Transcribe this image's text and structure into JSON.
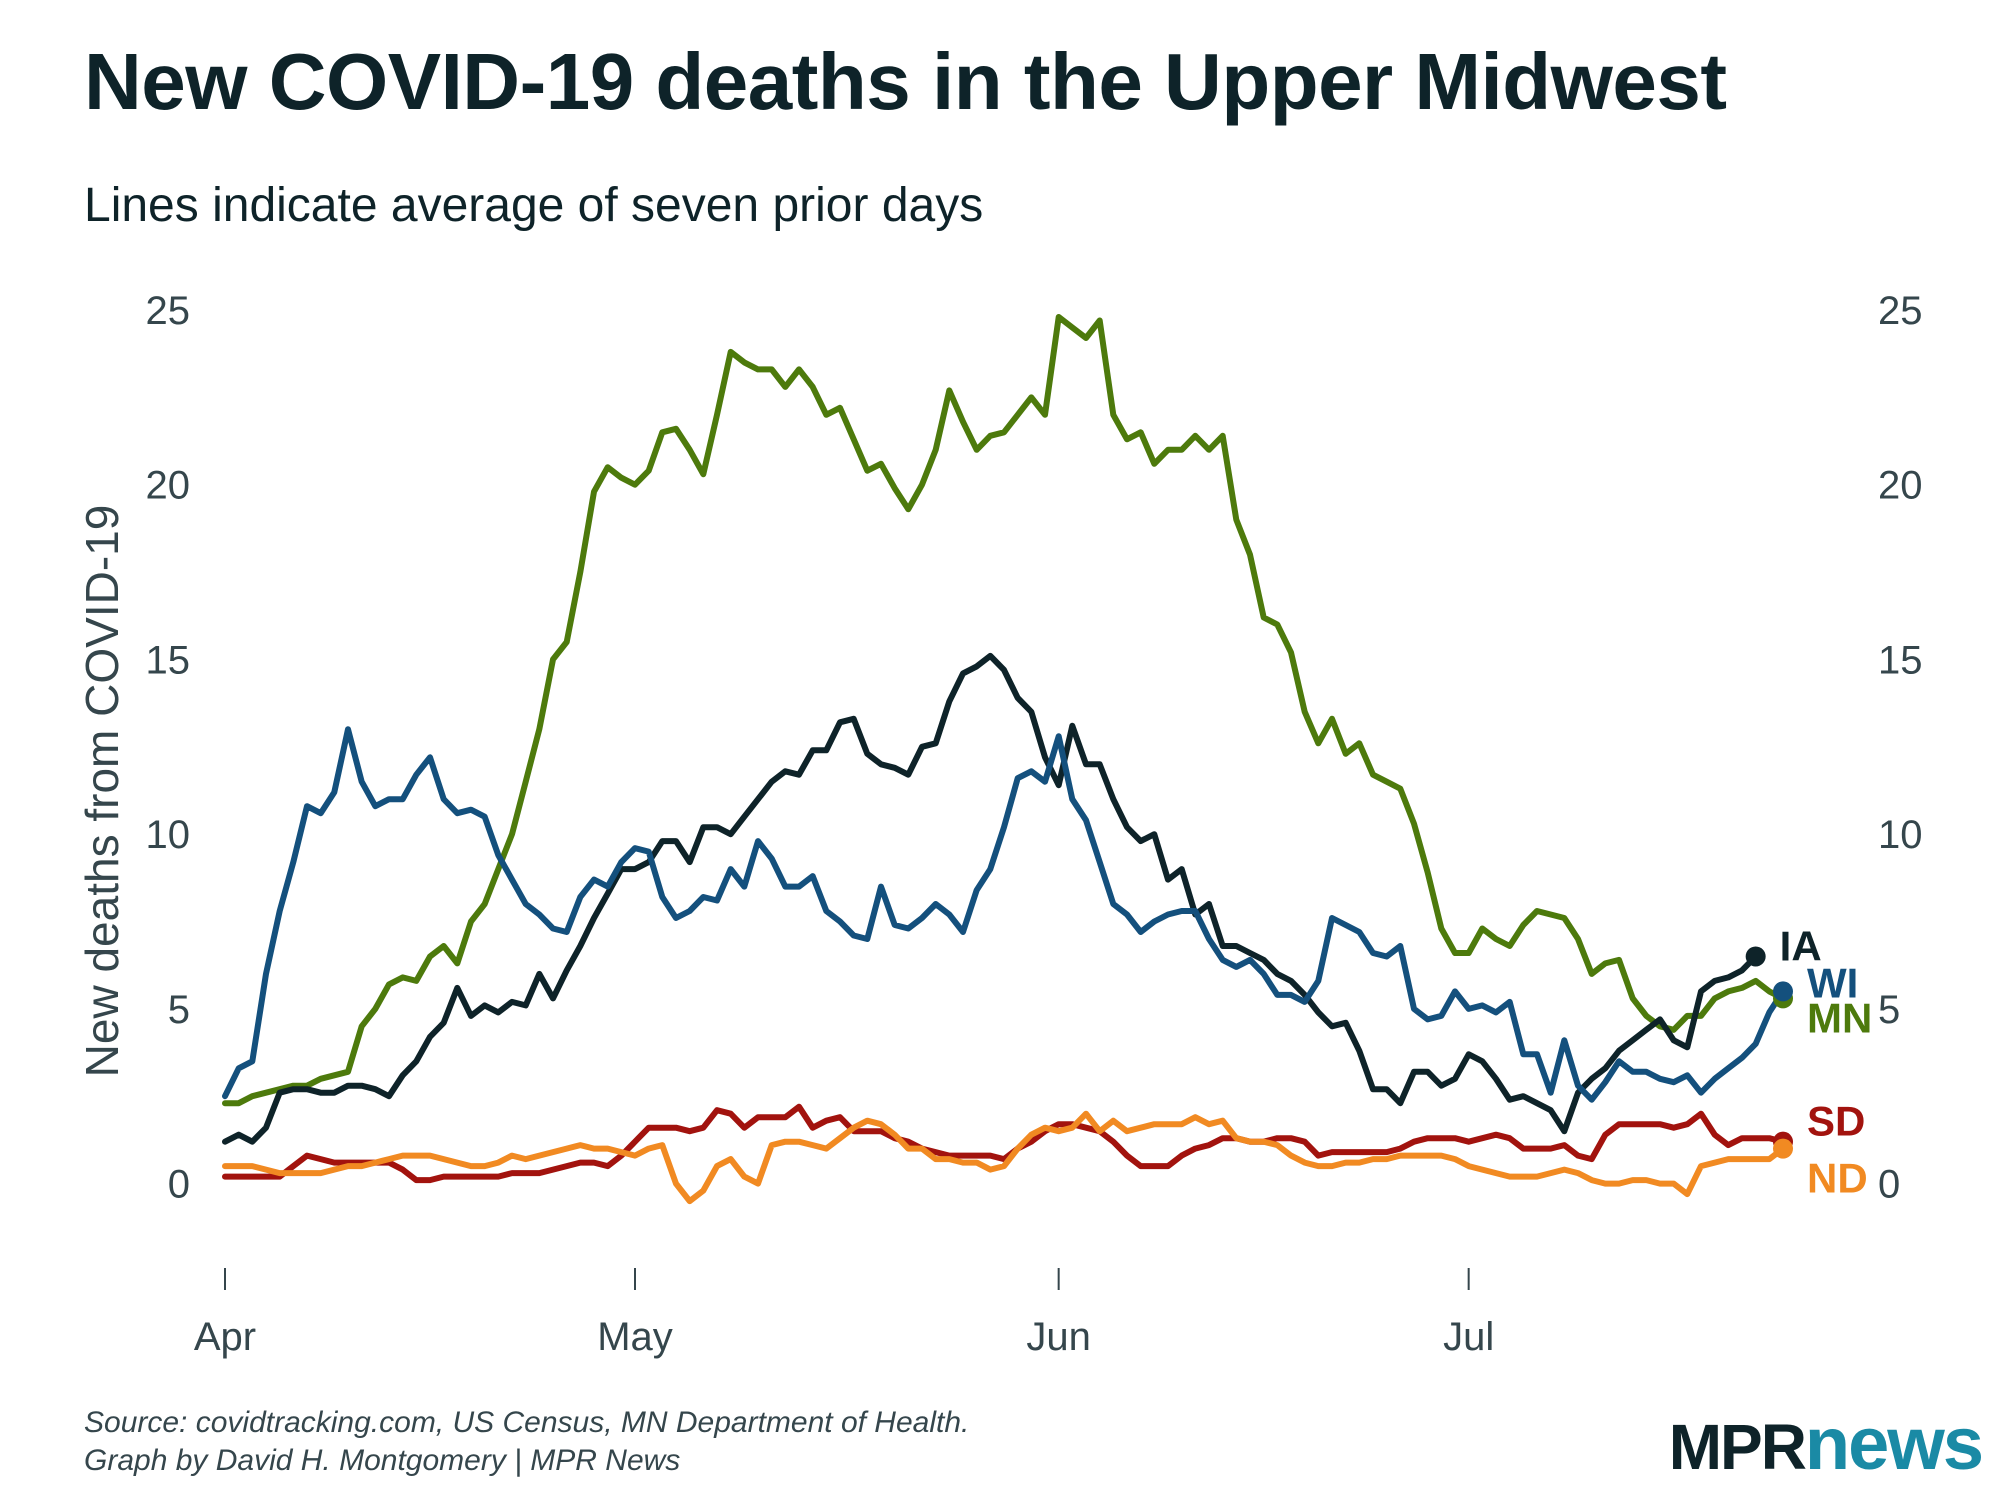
{
  "title": "New COVID-19 deaths in the Upper Midwest",
  "subtitle": "Lines indicate average of seven prior days",
  "footer": {
    "source": "Source: covidtracking.com, US Census, MN Department of Health.",
    "credit": "Graph by David H. Montgomery | MPR News"
  },
  "logo": {
    "mpr": "MPR",
    "news": "news"
  },
  "chart_data": {
    "type": "line",
    "title": "New COVID-19 deaths in the Upper Midwest",
    "subtitle": "Lines indicate average of seven prior days",
    "xlabel": "",
    "ylabel": "New deaths from COVID-19",
    "x_unit": "days since April 1",
    "xlim": [
      0,
      111
    ],
    "ylim": [
      -1.5,
      25
    ],
    "x_ticks": [
      {
        "label": "Apr",
        "day": 0
      },
      {
        "label": "May",
        "day": 30
      },
      {
        "label": "Jun",
        "day": 61
      },
      {
        "label": "Jul",
        "day": 91
      }
    ],
    "y_ticks": [
      0,
      5,
      10,
      15,
      20,
      25
    ],
    "grid": false,
    "legend": "direct labels at line ends (right)",
    "series": [
      {
        "name": "MN",
        "color": "#4d7a0c",
        "values": [
          2.3,
          2.3,
          2.5,
          2.6,
          2.7,
          2.8,
          2.8,
          3.0,
          3.1,
          3.2,
          4.5,
          5.0,
          5.7,
          5.9,
          5.8,
          6.5,
          6.8,
          6.3,
          7.5,
          8.0,
          9.0,
          10.0,
          11.5,
          13.0,
          15.0,
          15.5,
          17.5,
          19.8,
          20.5,
          20.2,
          20.0,
          20.4,
          21.5,
          21.6,
          21.0,
          20.3,
          22.0,
          23.8,
          23.5,
          23.3,
          23.3,
          22.8,
          23.3,
          22.8,
          22.0,
          22.2,
          21.3,
          20.4,
          20.6,
          19.9,
          19.3,
          20.0,
          21.0,
          22.7,
          21.8,
          21.0,
          21.4,
          21.5,
          22.0,
          22.5,
          22.0,
          24.8,
          24.5,
          24.2,
          24.7,
          22.0,
          21.3,
          21.5,
          20.6,
          21.0,
          21.0,
          21.4,
          21.0,
          21.4,
          19.0,
          18.0,
          16.2,
          16.0,
          15.2,
          13.5,
          12.6,
          13.3,
          12.3,
          12.6,
          11.7,
          11.5,
          11.3,
          10.3,
          8.9,
          7.3,
          6.6,
          6.6,
          7.3,
          7.0,
          6.8,
          7.4,
          7.8,
          7.7,
          7.6,
          7.0,
          6.0,
          6.3,
          6.4,
          5.3,
          4.8,
          4.5,
          4.4,
          4.8,
          4.8,
          5.3,
          5.5,
          5.6,
          5.8,
          5.5,
          5.3
        ]
      },
      {
        "name": "IA",
        "color": "#0e2329",
        "values": [
          1.2,
          1.4,
          1.2,
          1.6,
          2.6,
          2.7,
          2.7,
          2.6,
          2.6,
          2.8,
          2.8,
          2.7,
          2.5,
          3.1,
          3.5,
          4.2,
          4.6,
          5.6,
          4.8,
          5.1,
          4.9,
          5.2,
          5.1,
          6.0,
          5.3,
          6.1,
          6.8,
          7.6,
          8.3,
          9.0,
          9.0,
          9.2,
          9.8,
          9.8,
          9.2,
          10.2,
          10.2,
          10.0,
          10.5,
          11.0,
          11.5,
          11.8,
          11.7,
          12.4,
          12.4,
          13.2,
          13.3,
          12.3,
          12.0,
          11.9,
          11.7,
          12.5,
          12.6,
          13.8,
          14.6,
          14.8,
          15.1,
          14.7,
          13.9,
          13.5,
          12.2,
          11.4,
          13.1,
          12.0,
          12.0,
          11.0,
          10.2,
          9.8,
          10.0,
          8.7,
          9.0,
          7.7,
          8.0,
          6.8,
          6.8,
          6.6,
          6.4,
          6.0,
          5.8,
          5.4,
          4.9,
          4.5,
          4.6,
          3.8,
          2.7,
          2.7,
          2.3,
          3.2,
          3.2,
          2.8,
          3.0,
          3.7,
          3.5,
          3.0,
          2.4,
          2.5,
          2.3,
          2.1,
          1.5,
          2.6,
          3.0,
          3.3,
          3.8,
          4.1,
          4.4,
          4.7,
          4.1,
          3.9,
          5.5,
          5.8,
          5.9,
          6.1,
          6.5
        ]
      },
      {
        "name": "WI",
        "color": "#14507d",
        "values": [
          2.5,
          3.3,
          3.5,
          6.0,
          7.8,
          9.2,
          10.8,
          10.6,
          11.2,
          13.0,
          11.5,
          10.8,
          11.0,
          11.0,
          11.7,
          12.2,
          11.0,
          10.6,
          10.7,
          10.5,
          9.4,
          8.7,
          8.0,
          7.7,
          7.3,
          7.2,
          8.2,
          8.7,
          8.5,
          9.2,
          9.6,
          9.5,
          8.2,
          7.6,
          7.8,
          8.2,
          8.1,
          9.0,
          8.5,
          9.8,
          9.3,
          8.5,
          8.5,
          8.8,
          7.8,
          7.5,
          7.1,
          7.0,
          8.5,
          7.4,
          7.3,
          7.6,
          8.0,
          7.7,
          7.2,
          8.4,
          9.0,
          10.2,
          11.6,
          11.8,
          11.5,
          12.8,
          11.0,
          10.4,
          9.2,
          8.0,
          7.7,
          7.2,
          7.5,
          7.7,
          7.8,
          7.8,
          7.0,
          6.4,
          6.2,
          6.4,
          6.0,
          5.4,
          5.4,
          5.2,
          5.8,
          7.6,
          7.4,
          7.2,
          6.6,
          6.5,
          6.8,
          5.0,
          4.7,
          4.8,
          5.5,
          5.0,
          5.1,
          4.9,
          5.2,
          3.7,
          3.7,
          2.6,
          4.1,
          2.8,
          2.4,
          2.9,
          3.5,
          3.2,
          3.2,
          3.0,
          2.9,
          3.1,
          2.6,
          3.0,
          3.3,
          3.6,
          4.0,
          4.9,
          5.5
        ]
      },
      {
        "name": "SD",
        "color": "#a2130e",
        "values": [
          0.2,
          0.2,
          0.2,
          0.2,
          0.2,
          0.5,
          0.8,
          0.7,
          0.6,
          0.6,
          0.6,
          0.6,
          0.6,
          0.4,
          0.1,
          0.1,
          0.2,
          0.2,
          0.2,
          0.2,
          0.2,
          0.3,
          0.3,
          0.3,
          0.4,
          0.5,
          0.6,
          0.6,
          0.5,
          0.8,
          1.2,
          1.6,
          1.6,
          1.6,
          1.5,
          1.6,
          2.1,
          2.0,
          1.6,
          1.9,
          1.9,
          1.9,
          2.2,
          1.6,
          1.8,
          1.9,
          1.5,
          1.5,
          1.5,
          1.3,
          1.2,
          1.0,
          0.9,
          0.8,
          0.8,
          0.8,
          0.8,
          0.7,
          1.0,
          1.2,
          1.5,
          1.7,
          1.7,
          1.6,
          1.5,
          1.2,
          0.8,
          0.5,
          0.5,
          0.5,
          0.8,
          1.0,
          1.1,
          1.3,
          1.3,
          1.2,
          1.2,
          1.3,
          1.3,
          1.2,
          0.8,
          0.9,
          0.9,
          0.9,
          0.9,
          0.9,
          1.0,
          1.2,
          1.3,
          1.3,
          1.3,
          1.2,
          1.3,
          1.4,
          1.3,
          1.0,
          1.0,
          1.0,
          1.1,
          0.8,
          0.7,
          1.4,
          1.7,
          1.7,
          1.7,
          1.7,
          1.6,
          1.7,
          2.0,
          1.4,
          1.1,
          1.3,
          1.3,
          1.3,
          1.2
        ]
      },
      {
        "name": "ND",
        "color": "#f18a22",
        "values": [
          0.5,
          0.5,
          0.5,
          0.4,
          0.3,
          0.3,
          0.3,
          0.3,
          0.4,
          0.5,
          0.5,
          0.6,
          0.7,
          0.8,
          0.8,
          0.8,
          0.7,
          0.6,
          0.5,
          0.5,
          0.6,
          0.8,
          0.7,
          0.8,
          0.9,
          1.0,
          1.1,
          1.0,
          1.0,
          0.9,
          0.8,
          1.0,
          1.1,
          0.0,
          -0.5,
          -0.2,
          0.5,
          0.7,
          0.2,
          0.0,
          1.1,
          1.2,
          1.2,
          1.1,
          1.0,
          1.3,
          1.6,
          1.8,
          1.7,
          1.4,
          1.0,
          1.0,
          0.7,
          0.7,
          0.6,
          0.6,
          0.4,
          0.5,
          1.0,
          1.4,
          1.6,
          1.5,
          1.6,
          2.0,
          1.5,
          1.8,
          1.5,
          1.6,
          1.7,
          1.7,
          1.7,
          1.9,
          1.7,
          1.8,
          1.3,
          1.2,
          1.2,
          1.1,
          0.8,
          0.6,
          0.5,
          0.5,
          0.6,
          0.6,
          0.7,
          0.7,
          0.8,
          0.8,
          0.8,
          0.8,
          0.7,
          0.5,
          0.4,
          0.3,
          0.2,
          0.2,
          0.2,
          0.3,
          0.4,
          0.3,
          0.1,
          0.0,
          0.0,
          0.1,
          0.1,
          0.0,
          0.0,
          -0.3,
          0.5,
          0.6,
          0.7,
          0.7,
          0.7,
          0.7,
          1.0
        ]
      }
    ]
  }
}
